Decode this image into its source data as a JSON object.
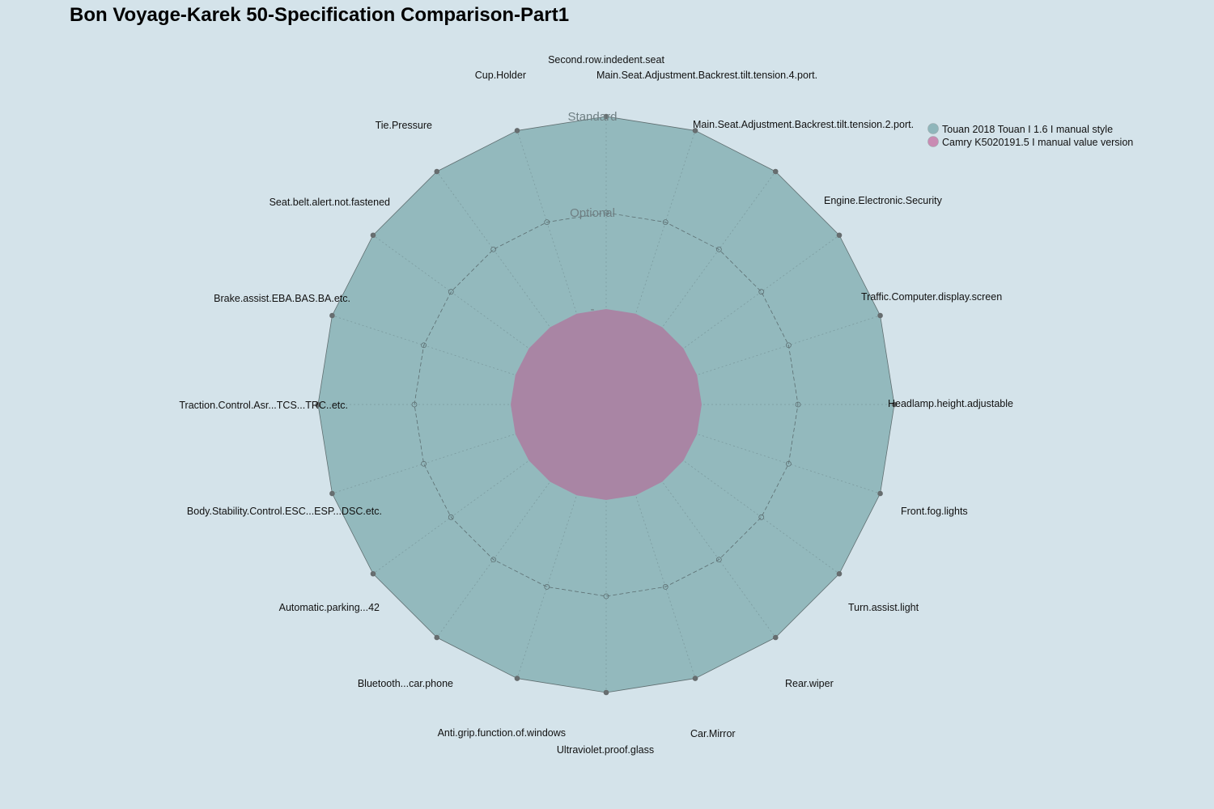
{
  "chart_data": {
    "type": "radar",
    "title": "Bon Voyage-Karek 50-Specification Comparison-Part1",
    "categories": [
      "Second.row.indedent.seat",
      "Main.Seat.Adjustment.Backrest.tilt.tension.4.port.",
      "Main.Seat.Adjustment.Backrest.tilt.tension.2.port.",
      "Engine.Electronic.Security",
      "Traffic.Computer.display.screen",
      "Headlamp.height.adjustable",
      "Front.fog.lights",
      "Turn.assist.light",
      "Rear.wiper",
      "Car.Mirror",
      "Ultraviolet.proof.glass",
      "Anti.grip.function.of.windows",
      "Bluetooth...car.phone",
      "Automatic.parking...42",
      "Body.Stability.Control.ESC...ESP...DSC.etc.",
      "Traction.Control.Asr...TCS...TRC..etc.",
      "Brake.assist.EBA.BAS.BA.etc.",
      "Seat.belt.alert.not.fastened",
      "Tie.Pressure",
      "Cup.Holder"
    ],
    "levels": [
      "-",
      "Optional",
      "Standard"
    ],
    "series": [
      {
        "name": "Touan 2018 Touan I 1.6 I manual style",
        "color": "#8fb6bb",
        "values": [
          2,
          2,
          2,
          2,
          2,
          2,
          2,
          2,
          2,
          2,
          2,
          2,
          2,
          2,
          2,
          2,
          2,
          2,
          2,
          2
        ]
      },
      {
        "name": "Camry K5020191.5 I manual value version",
        "color": "#c98bb3",
        "values": [
          0,
          0,
          0,
          0,
          0,
          0,
          0,
          0,
          0,
          0,
          0,
          0,
          0,
          0,
          0,
          0,
          0,
          0,
          0,
          0
        ]
      }
    ],
    "reference_line": {
      "values": [
        1,
        1,
        1,
        1,
        1,
        1,
        1,
        1,
        1,
        1,
        1,
        1,
        1,
        1,
        1,
        1,
        1,
        1,
        1,
        1
      ]
    },
    "legend_position": "top-right",
    "grid": true
  }
}
